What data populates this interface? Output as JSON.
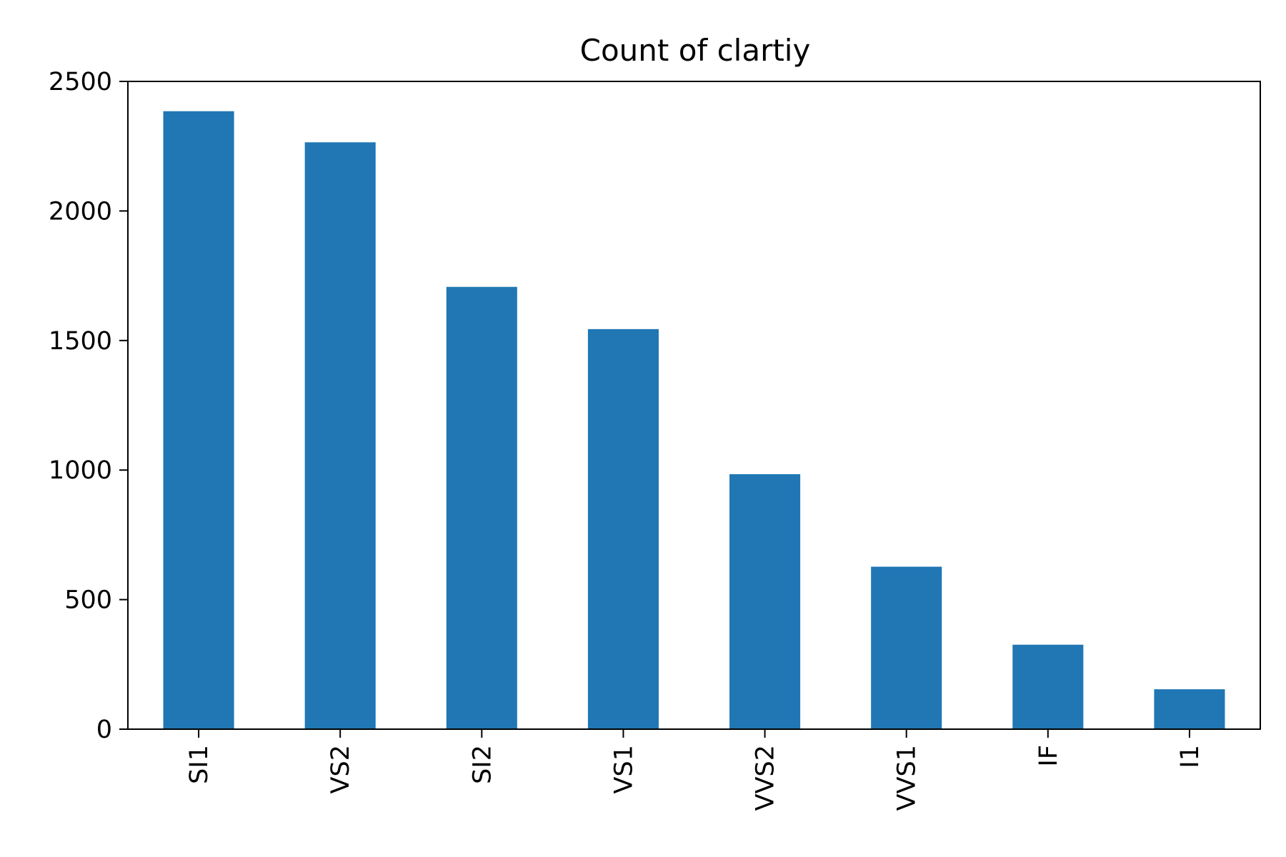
{
  "chart_data": {
    "type": "bar",
    "title": "Count of clartiy",
    "xlabel": "",
    "ylabel": "",
    "categories": [
      "SI1",
      "VS2",
      "SI2",
      "VS1",
      "VVS2",
      "VVS1",
      "IF",
      "I1"
    ],
    "values": [
      2385,
      2265,
      1707,
      1544,
      984,
      627,
      326,
      154
    ],
    "ylim": [
      0,
      2500
    ],
    "yticks": [
      0,
      500,
      1000,
      1500,
      2000,
      2500
    ],
    "x_tick_rotation": "vertical",
    "grid": false,
    "legend": "none",
    "bar_color": "#2077b4"
  }
}
